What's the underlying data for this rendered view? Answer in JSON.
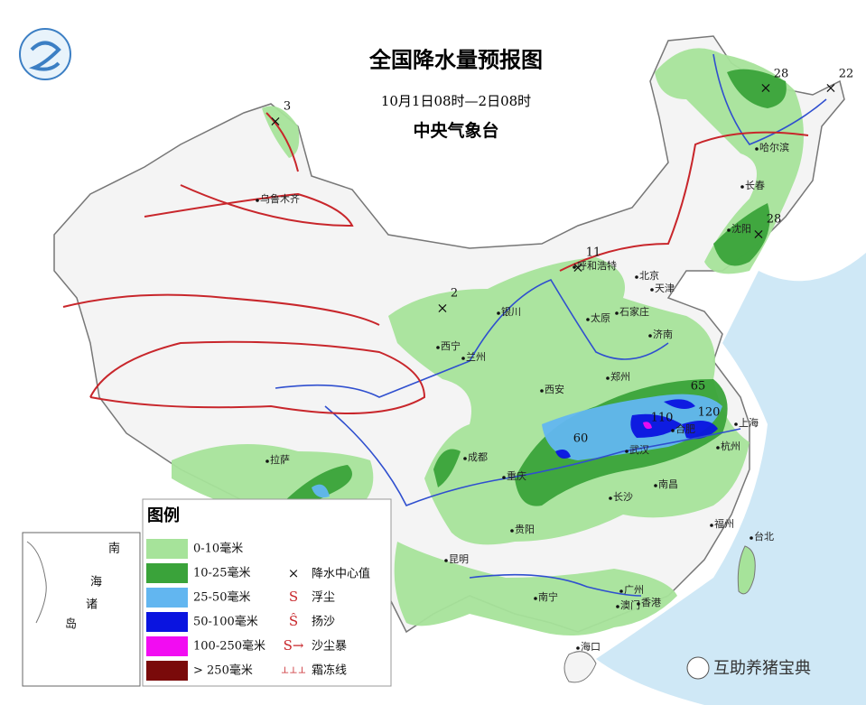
{
  "header": {
    "title": "全国降水量预报图",
    "period": "10月1日08时—2日08时",
    "issuer": "中央气象台"
  },
  "legend": {
    "title": "图例",
    "precipitation": [
      {
        "label": "0-10毫米",
        "color": "#a6e39a"
      },
      {
        "label": "10-25毫米",
        "color": "#3aa33a"
      },
      {
        "label": "25-50毫米",
        "color": "#62b6f0"
      },
      {
        "label": "50-100毫米",
        "color": "#0a14e0"
      },
      {
        "label": "100-250毫米",
        "color": "#f20cf2"
      },
      {
        "label": "> 250毫米",
        "color": "#7a0a0a"
      }
    ],
    "symbols": [
      "降水中心值",
      "浮尘",
      "扬沙",
      "沙尘暴",
      "霜冻线"
    ]
  },
  "inset": {
    "labels": [
      "南",
      "海",
      "诸",
      "岛"
    ]
  },
  "cities": [
    "乌鲁木齐",
    "哈尔滨",
    "长春",
    "沈阳",
    "呼和浩特",
    "北京",
    "天津",
    "石家庄",
    "太原",
    "银川",
    "西宁",
    "兰州",
    "济南",
    "郑州",
    "西安",
    "合肥",
    "上海",
    "杭州",
    "武汉",
    "成都",
    "重庆",
    "拉萨",
    "长沙",
    "南昌",
    "贵阳",
    "昆明",
    "福州",
    "台北",
    "南宁",
    "广州",
    "香港",
    "澳门",
    "海口"
  ],
  "precipitation_centers": [
    3,
    28,
    22,
    28,
    11,
    2,
    65,
    110,
    120,
    60
  ],
  "watermark": "互助养猪宝典"
}
